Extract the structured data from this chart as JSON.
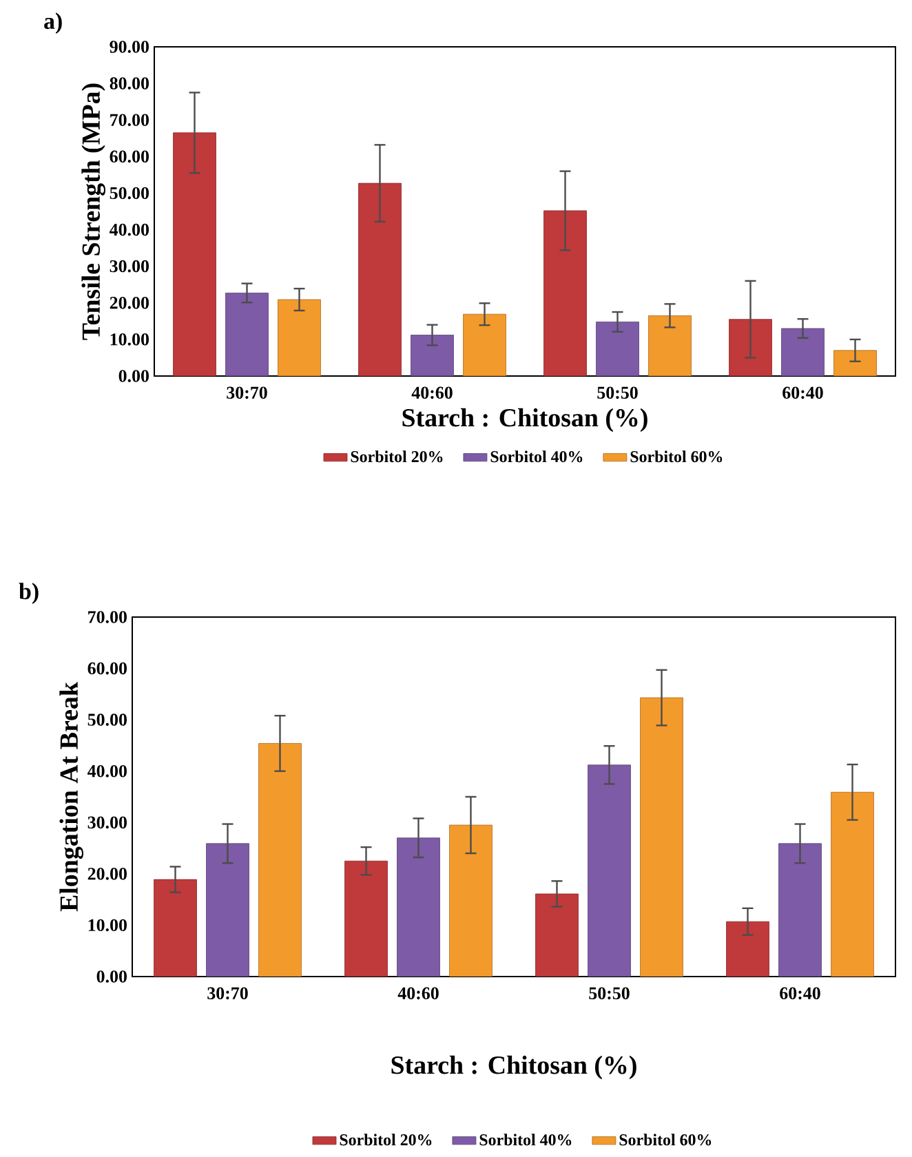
{
  "chart_data": [
    {
      "type": "bar",
      "title": "a)",
      "xlabel": "Starch : Chitosan (%)",
      "ylabel": "Tensile Strength (MPa)",
      "categories": [
        "30:70",
        "40:60",
        "50:50",
        "60:40"
      ],
      "series": [
        {
          "name": "Sorbitol 20%",
          "color": "#c0393b",
          "values": [
            66.5,
            52.7,
            45.2,
            15.5
          ],
          "errors": [
            11,
            10.5,
            10.8,
            10.5
          ]
        },
        {
          "name": "Sorbitol 40%",
          "color": "#7d5ba6",
          "values": [
            22.7,
            11.2,
            14.8,
            13.0
          ],
          "errors": [
            2.6,
            2.8,
            2.7,
            2.6
          ]
        },
        {
          "name": "Sorbitol 60%",
          "color": "#f39a2c",
          "values": [
            20.9,
            16.9,
            16.5,
            7.0
          ],
          "errors": [
            3.0,
            3.0,
            3.2,
            3.0
          ]
        }
      ],
      "ylim": [
        0,
        90
      ],
      "yticks": [
        {
          "value": 0,
          "label": "0.00"
        },
        {
          "value": 10,
          "label": "10.00"
        },
        {
          "value": 20,
          "label": "20.00"
        },
        {
          "value": 30,
          "label": "30.00"
        },
        {
          "value": 40,
          "label": "40.00"
        },
        {
          "value": 50,
          "label": "50.00"
        },
        {
          "value": 60,
          "label": "60.00"
        },
        {
          "value": 70,
          "label": "70.00"
        },
        {
          "value": 80,
          "label": "80.00"
        },
        {
          "value": 90,
          "label": "90.00"
        }
      ],
      "legend": "bottom"
    },
    {
      "type": "bar",
      "title": "b)",
      "xlabel": "Starch : Chitosan (%)",
      "ylabel": "Elongation At Break",
      "categories": [
        "30:70",
        "40:60",
        "50:50",
        "60:40"
      ],
      "series": [
        {
          "name": "Sorbitol 20%",
          "color": "#c0393b",
          "values": [
            18.9,
            22.5,
            16.1,
            10.7
          ],
          "errors": [
            2.5,
            2.7,
            2.5,
            2.6
          ]
        },
        {
          "name": "Sorbitol 40%",
          "color": "#7d5ba6",
          "values": [
            25.9,
            27.0,
            41.2,
            25.9
          ],
          "errors": [
            3.8,
            3.8,
            3.7,
            3.8
          ]
        },
        {
          "name": "Sorbitol 60%",
          "color": "#f39a2c",
          "values": [
            45.4,
            29.5,
            54.3,
            35.9
          ],
          "errors": [
            5.4,
            5.5,
            5.4,
            5.4
          ]
        }
      ],
      "ylim": [
        0,
        70
      ],
      "yticks": [
        {
          "value": 0,
          "label": "0.00"
        },
        {
          "value": 10,
          "label": "10.00"
        },
        {
          "value": 20,
          "label": "20.00"
        },
        {
          "value": 30,
          "label": "30.00"
        },
        {
          "value": 40,
          "label": "40.00"
        },
        {
          "value": 50,
          "label": "50.00"
        },
        {
          "value": 60,
          "label": "60.00"
        },
        {
          "value": 70,
          "label": "70.00"
        }
      ],
      "legend": "bottom"
    }
  ]
}
